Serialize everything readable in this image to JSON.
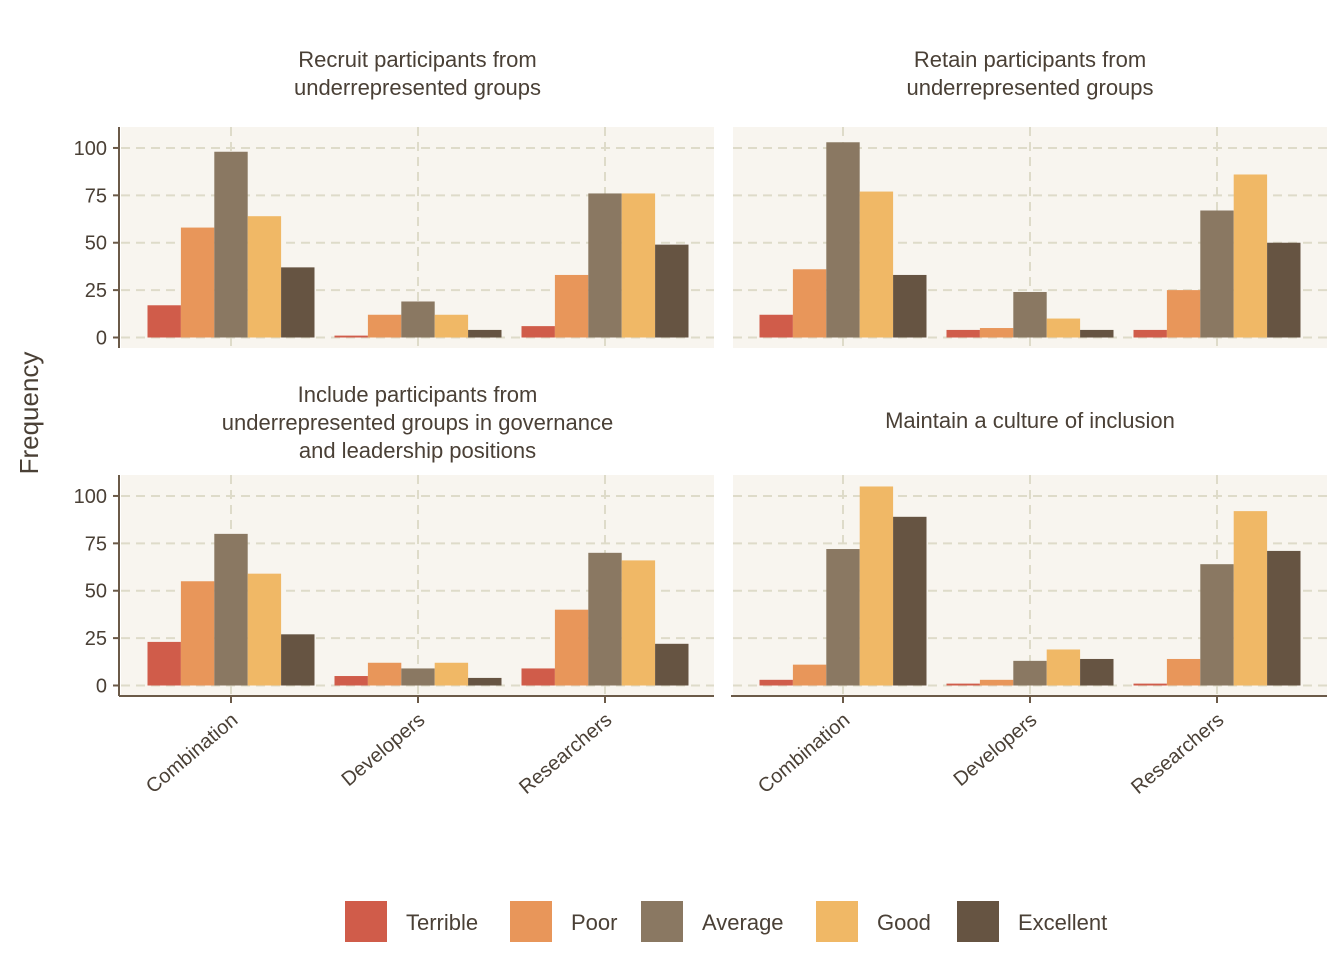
{
  "chart_data": {
    "type": "bar",
    "ylabel": "Frequency",
    "ylim": [
      0,
      110
    ],
    "yticks": [
      0,
      25,
      50,
      75,
      100
    ],
    "categories": [
      "Combination",
      "Developers",
      "Researchers"
    ],
    "legend": [
      "Terrible",
      "Poor",
      "Average",
      "Good",
      "Excellent"
    ],
    "colors": {
      "Terrible": "#d05c4a",
      "Poor": "#e8965a",
      "Average": "#8a7862",
      "Good": "#f0b866",
      "Excellent": "#665442",
      "panel_bg": "#f8f5ef",
      "grid": "#dedbc9",
      "axis": "#6b5a48"
    },
    "legend_position": "bottom",
    "grid": true,
    "panels": [
      {
        "title": [
          "Recruit participants from",
          "underrepresented groups"
        ],
        "series": [
          {
            "name": "Terrible",
            "values": [
              17,
              1,
              6
            ]
          },
          {
            "name": "Poor",
            "values": [
              58,
              12,
              33
            ]
          },
          {
            "name": "Average",
            "values": [
              98,
              19,
              76
            ]
          },
          {
            "name": "Good",
            "values": [
              64,
              12,
              76
            ]
          },
          {
            "name": "Excellent",
            "values": [
              37,
              4,
              49
            ]
          }
        ]
      },
      {
        "title": [
          "Retain participants from",
          "underrepresented groups"
        ],
        "series": [
          {
            "name": "Terrible",
            "values": [
              12,
              4,
              4
            ]
          },
          {
            "name": "Poor",
            "values": [
              36,
              5,
              25
            ]
          },
          {
            "name": "Average",
            "values": [
              103,
              24,
              67
            ]
          },
          {
            "name": "Good",
            "values": [
              77,
              10,
              86
            ]
          },
          {
            "name": "Excellent",
            "values": [
              33,
              4,
              50
            ]
          }
        ]
      },
      {
        "title": [
          "Include participants from",
          "underrepresented groups in governance",
          "and leadership positions"
        ],
        "series": [
          {
            "name": "Terrible",
            "values": [
              23,
              5,
              9
            ]
          },
          {
            "name": "Poor",
            "values": [
              55,
              12,
              40
            ]
          },
          {
            "name": "Average",
            "values": [
              80,
              9,
              70
            ]
          },
          {
            "name": "Good",
            "values": [
              59,
              12,
              66
            ]
          },
          {
            "name": "Excellent",
            "values": [
              27,
              4,
              22
            ]
          }
        ]
      },
      {
        "title": [
          "Maintain a culture of inclusion"
        ],
        "series": [
          {
            "name": "Terrible",
            "values": [
              3,
              1,
              1
            ]
          },
          {
            "name": "Poor",
            "values": [
              11,
              3,
              14
            ]
          },
          {
            "name": "Average",
            "values": [
              72,
              13,
              64
            ]
          },
          {
            "name": "Good",
            "values": [
              105,
              19,
              92
            ]
          },
          {
            "name": "Excellent",
            "values": [
              89,
              14,
              71
            ]
          }
        ]
      }
    ]
  }
}
